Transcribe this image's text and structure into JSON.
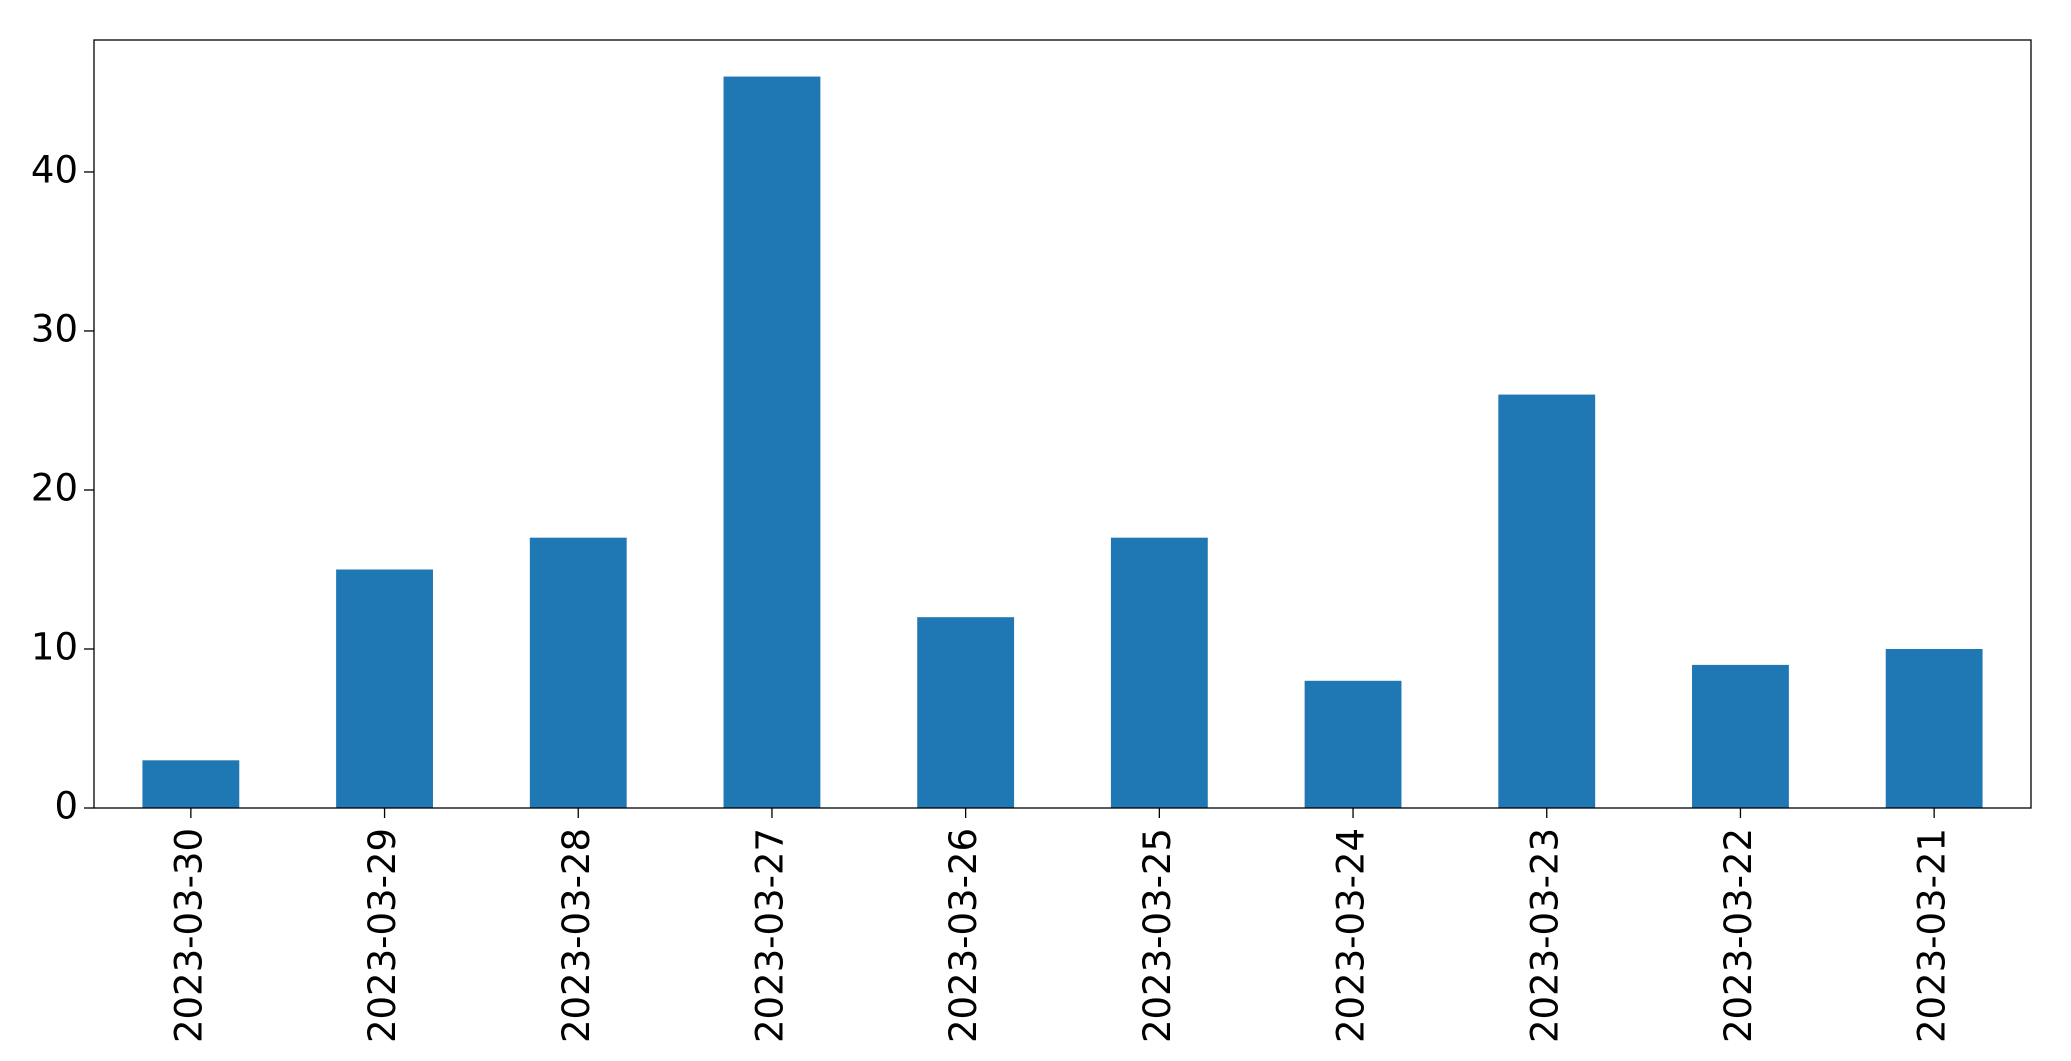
{
  "chart_data": {
    "type": "bar",
    "categories": [
      "2023-03-30",
      "2023-03-29",
      "2023-03-28",
      "2023-03-27",
      "2023-03-26",
      "2023-03-25",
      "2023-03-24",
      "2023-03-23",
      "2023-03-22",
      "2023-03-21"
    ],
    "values": [
      3,
      15,
      17,
      46,
      12,
      17,
      8,
      26,
      9,
      10
    ],
    "color": "#1f77b4",
    "ylim": [
      0,
      48.3
    ],
    "yticks": [
      0,
      10,
      20,
      30,
      40
    ],
    "grid": false
  }
}
